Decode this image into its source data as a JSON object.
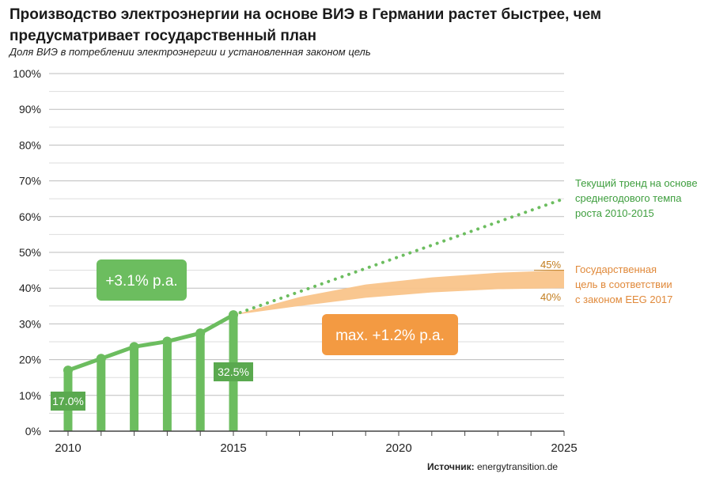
{
  "title": "Производство электроэнергии на основе ВИЭ в Германии растет быстрее, чем предусматривает государственный план",
  "subtitle": "Доля ВИЭ в потреблении электроэнергии и установленная законом цель",
  "source": {
    "label": "Источник:",
    "value": "energytransition.de"
  },
  "colors": {
    "green": "#6cbd5f",
    "green_dark": "#5aa94f",
    "orange": "#f39a42",
    "band": "#f9c48a",
    "orange_text": "#c27c1c",
    "grid": "#cccccc"
  },
  "chart_data": {
    "type": "bar",
    "x": [
      2010,
      2011,
      2012,
      2013,
      2014,
      2015
    ],
    "values": [
      17.0,
      20.3,
      23.6,
      25.1,
      27.4,
      32.5
    ],
    "x_ticks": [
      "2010",
      "2015",
      "2020",
      "2025"
    ],
    "y_ticks": [
      "0%",
      "10%",
      "20%",
      "30%",
      "40%",
      "50%",
      "60%",
      "70%",
      "80%",
      "90%",
      "100%"
    ],
    "xlim": [
      2010,
      2025
    ],
    "ylim": [
      0,
      100
    ],
    "data_labels": {
      "first": "17.0%",
      "last": "32.5%"
    },
    "trend": {
      "x": [
        2015,
        2025
      ],
      "y": [
        32.5,
        65
      ],
      "label_lines": [
        "Текущий тренд на основе",
        "среднегодового темпа",
        "роста 2010-2015"
      ]
    },
    "target_band": {
      "x": [
        2015,
        2017,
        2019,
        2021,
        2023,
        2025
      ],
      "upper": [
        32.5,
        37.5,
        41.0,
        43.0,
        44.3,
        45.0
      ],
      "lower": [
        32.5,
        35.0,
        37.3,
        38.8,
        39.7,
        40.0
      ],
      "upper_label": "45%",
      "lower_label": "40%",
      "label_lines": [
        "Государственная",
        "цель в соответствии",
        "с законом EEG 2017"
      ]
    },
    "callouts": {
      "growth": "+3.1% p.a.",
      "target": "max. +1.2% p.a."
    }
  }
}
